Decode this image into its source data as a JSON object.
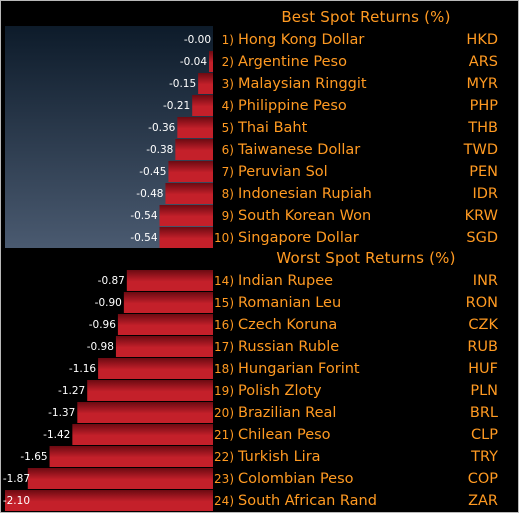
{
  "colors": {
    "background": "#000000",
    "label_text": "#ff9a22",
    "bar_dark": "#6c0a12",
    "bar_light": "#c4202a",
    "plot_dark": "#0d1b2a",
    "plot_light": "#4a5a70"
  },
  "chart_data": {
    "type": "bar",
    "orientation": "horizontal",
    "xlim": [
      -2.1,
      0
    ],
    "sections": [
      {
        "title": "Best Spot Returns (%)",
        "rows": [
          {
            "rank": "1)",
            "currency": "Hong Kong Dollar",
            "code": "HKD",
            "value": -0.0,
            "label": "-0.00"
          },
          {
            "rank": "2)",
            "currency": "Argentine Peso",
            "code": "ARS",
            "value": -0.04,
            "label": "-0.04"
          },
          {
            "rank": "3)",
            "currency": "Malaysian Ringgit",
            "code": "MYR",
            "value": -0.15,
            "label": "-0.15"
          },
          {
            "rank": "4)",
            "currency": "Philippine Peso",
            "code": "PHP",
            "value": -0.21,
            "label": "-0.21"
          },
          {
            "rank": "5)",
            "currency": "Thai Baht",
            "code": "THB",
            "value": -0.36,
            "label": "-0.36"
          },
          {
            "rank": "6)",
            "currency": "Taiwanese Dollar",
            "code": "TWD",
            "value": -0.38,
            "label": "-0.38"
          },
          {
            "rank": "7)",
            "currency": "Peruvian Sol",
            "code": "PEN",
            "value": -0.45,
            "label": "-0.45"
          },
          {
            "rank": "8)",
            "currency": "Indonesian Rupiah",
            "code": "IDR",
            "value": -0.48,
            "label": "-0.48"
          },
          {
            "rank": "9)",
            "currency": "South Korean Won",
            "code": "KRW",
            "value": -0.54,
            "label": "-0.54"
          },
          {
            "rank": "10)",
            "currency": "Singapore Dollar",
            "code": "SGD",
            "value": -0.54,
            "label": "-0.54"
          }
        ]
      },
      {
        "title": "Worst Spot Returns (%)",
        "rows": [
          {
            "rank": "14)",
            "currency": "Indian Rupee",
            "code": "INR",
            "value": -0.87,
            "label": "-0.87"
          },
          {
            "rank": "15)",
            "currency": "Romanian Leu",
            "code": "RON",
            "value": -0.9,
            "label": "-0.90"
          },
          {
            "rank": "16)",
            "currency": "Czech Koruna",
            "code": "CZK",
            "value": -0.96,
            "label": "-0.96"
          },
          {
            "rank": "17)",
            "currency": "Russian Ruble",
            "code": "RUB",
            "value": -0.98,
            "label": "-0.98"
          },
          {
            "rank": "18)",
            "currency": "Hungarian Forint",
            "code": "HUF",
            "value": -1.16,
            "label": "-1.16"
          },
          {
            "rank": "19)",
            "currency": "Polish Zloty",
            "code": "PLN",
            "value": -1.27,
            "label": "-1.27"
          },
          {
            "rank": "20)",
            "currency": "Brazilian Real",
            "code": "BRL",
            "value": -1.37,
            "label": "-1.37"
          },
          {
            "rank": "21)",
            "currency": "Chilean Peso",
            "code": "CLP",
            "value": -1.42,
            "label": "-1.42"
          },
          {
            "rank": "22)",
            "currency": "Turkish Lira",
            "code": "TRY",
            "value": -1.65,
            "label": "-1.65"
          },
          {
            "rank": "23)",
            "currency": "Colombian Peso",
            "code": "COP",
            "value": -1.87,
            "label": "-1.87"
          },
          {
            "rank": "24)",
            "currency": "South African Rand",
            "code": "ZAR",
            "value": -2.1,
            "label": "-2.10"
          }
        ]
      }
    ]
  }
}
